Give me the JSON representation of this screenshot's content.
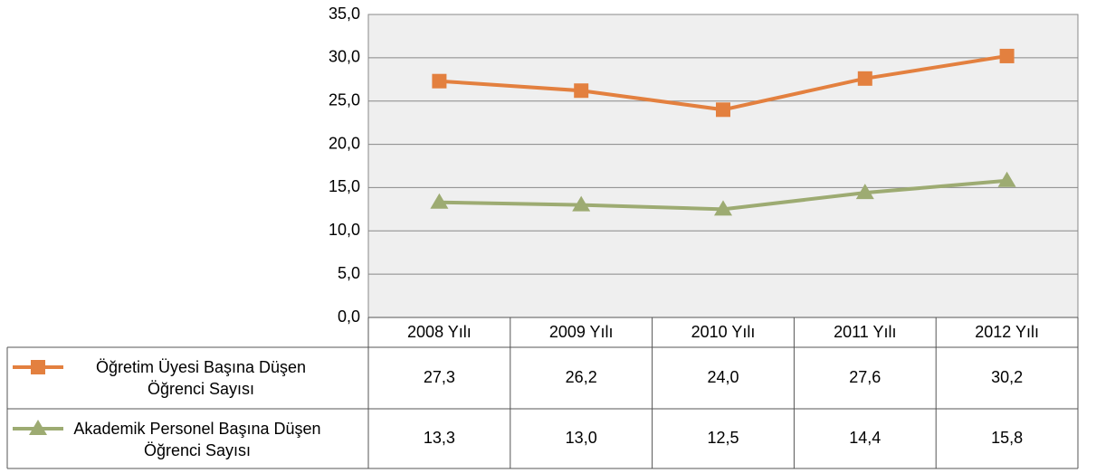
{
  "chart_data": {
    "type": "line",
    "categories": [
      "2008 Yılı",
      "2009 Yılı",
      "2010 Yılı",
      "2011 Yılı",
      "2012 Yılı"
    ],
    "series": [
      {
        "name": "Öğretim Üyesi Başına Düşen Öğrenci Sayısı",
        "color": "#e3803f",
        "marker": "square",
        "values": [
          27.3,
          26.2,
          24.0,
          27.6,
          30.2
        ],
        "value_labels": [
          "27,3",
          "26,2",
          "24,0",
          "27,6",
          "30,2"
        ]
      },
      {
        "name": "Akademik Personel Başına Düşen Öğrenci Sayısı",
        "color": "#9dab72",
        "marker": "triangle",
        "values": [
          13.3,
          13.0,
          12.5,
          14.4,
          15.8
        ],
        "value_labels": [
          "13,3",
          "13,0",
          "12,5",
          "14,4",
          "15,8"
        ]
      }
    ],
    "ylim": [
      0,
      35
    ],
    "yticks": [
      {
        "value": 0,
        "label": "0,0"
      },
      {
        "value": 5,
        "label": "5,0"
      },
      {
        "value": 10,
        "label": "10,0"
      },
      {
        "value": 15,
        "label": "15,0"
      },
      {
        "value": 20,
        "label": "20,0"
      },
      {
        "value": 25,
        "label": "25,0"
      },
      {
        "value": 30,
        "label": "30,0"
      },
      {
        "value": 35,
        "label": "35,0"
      }
    ],
    "grid": true
  }
}
